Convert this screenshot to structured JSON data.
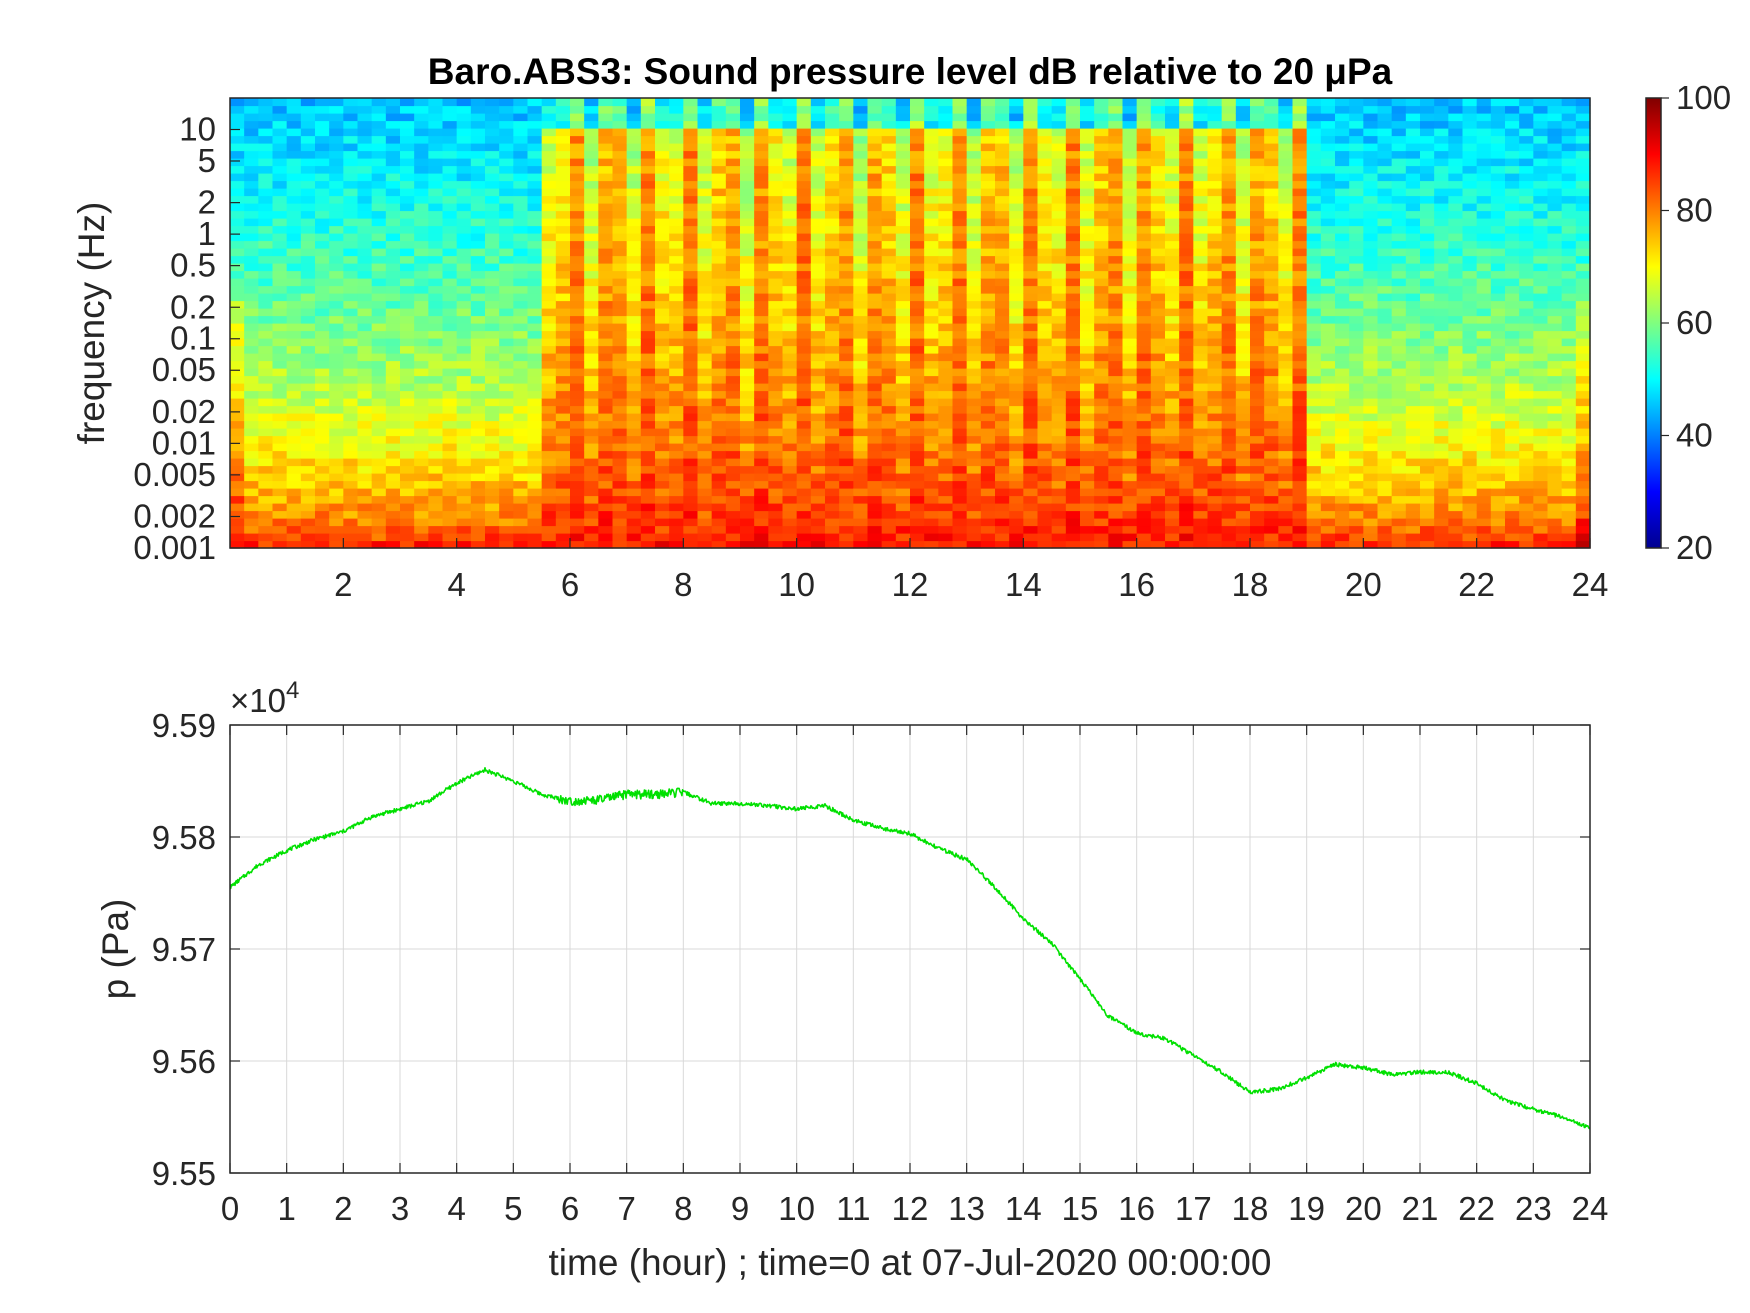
{
  "chart_data": [
    {
      "type": "heatmap",
      "title": "Baro.ABS3: Sound pressure level dB relative to 20 μPa",
      "ylabel": "frequency (Hz)",
      "xlabel": "",
      "y_scale": "log",
      "xlim": [
        0,
        24
      ],
      "ylim": [
        0.001,
        20
      ],
      "x_ticks": [
        "2",
        "4",
        "6",
        "8",
        "10",
        "12",
        "14",
        "16",
        "18",
        "20",
        "22",
        "24"
      ],
      "y_ticks": [
        "0.001",
        "0.002",
        "0.005",
        "0.01",
        "0.02",
        "0.05",
        "0.1",
        "0.2",
        "0.5",
        "1",
        "2",
        "5",
        "10"
      ],
      "colorbar": {
        "range": [
          20,
          100
        ],
        "ticks": [
          "20",
          "40",
          "60",
          "80",
          "100"
        ],
        "colormap": "jet"
      },
      "activity_periods_hours": [
        [
          5.6,
          19.0
        ]
      ],
      "description_levels": {
        "quiet_high_freq_dB": 45,
        "active_high_freq_dB": 70,
        "low_freq_dB": 90
      }
    },
    {
      "type": "line",
      "title": "",
      "xlabel": "time (hour) ; time=0 at 07-Jul-2020 00:00:00",
      "ylabel": "p (Pa)",
      "y_multiplier": "×10^4",
      "xlim": [
        0,
        24
      ],
      "ylim": [
        9.55,
        9.59
      ],
      "grid": true,
      "x_ticks": [
        "0",
        "1",
        "2",
        "3",
        "4",
        "5",
        "6",
        "7",
        "8",
        "9",
        "10",
        "11",
        "12",
        "13",
        "14",
        "15",
        "16",
        "17",
        "18",
        "19",
        "20",
        "21",
        "22",
        "23",
        "24"
      ],
      "y_ticks": [
        "9.55",
        "9.56",
        "9.57",
        "9.58",
        "9.59"
      ],
      "series": [
        {
          "color": "#00e000",
          "x": [
            0,
            0.5,
            1,
            1.5,
            2,
            2.5,
            3,
            3.5,
            4,
            4.5,
            5,
            5.5,
            6,
            6.5,
            7,
            7.5,
            8,
            8.5,
            9,
            9.5,
            10,
            10.5,
            11,
            11.5,
            12,
            12.5,
            13,
            13.5,
            14,
            14.5,
            15,
            15.5,
            16,
            16.5,
            17,
            17.5,
            18,
            18.5,
            19,
            19.5,
            20,
            20.5,
            21,
            21.5,
            22,
            22.5,
            23,
            23.5,
            24
          ],
          "values": [
            9.5755,
            9.5775,
            9.5788,
            9.5798,
            9.5805,
            9.5818,
            9.5825,
            9.5832,
            9.5848,
            9.586,
            9.585,
            9.5838,
            9.5832,
            9.5833,
            9.5838,
            9.5838,
            9.584,
            9.583,
            9.583,
            9.5828,
            9.5825,
            9.5828,
            9.5815,
            9.5808,
            9.5803,
            9.579,
            9.578,
            9.5755,
            9.5727,
            9.5705,
            9.5673,
            9.564,
            9.5625,
            9.562,
            9.5605,
            9.559,
            9.5572,
            9.5575,
            9.5585,
            9.5597,
            9.5594,
            9.5588,
            9.559,
            9.559,
            9.558,
            9.5565,
            9.5557,
            9.555,
            9.554
          ]
        }
      ]
    }
  ]
}
